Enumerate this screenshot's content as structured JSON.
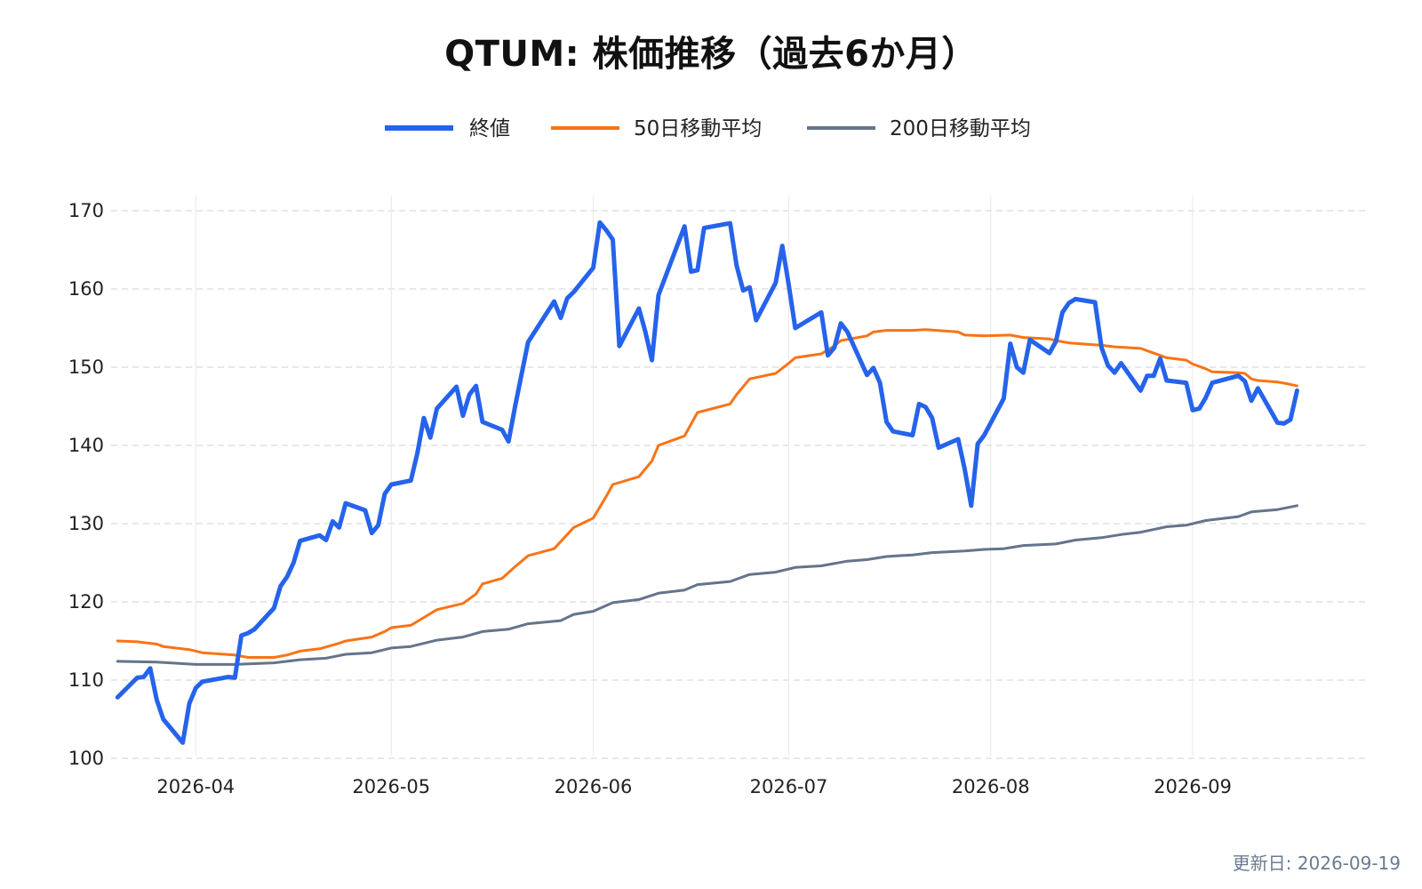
{
  "title": "QTUM: 株価推移（過去6か月）",
  "updated": "更新日: 2026-09-19",
  "colors": {
    "close": "#2563eb",
    "ma50": "#f97316",
    "ma200": "#64748b",
    "grid": "#d9d9d9"
  },
  "chart_data": {
    "type": "line",
    "title": "QTUM: 株価推移（過去6か月）",
    "xlabel": "",
    "ylabel": "",
    "ylim": [
      100,
      170
    ],
    "yticks": [
      100,
      110,
      120,
      130,
      140,
      150,
      160,
      170
    ],
    "yticklabels": [
      "100",
      "110",
      "120",
      "130",
      "140",
      "150",
      "160",
      "170"
    ],
    "xticks": [
      "2026-04-01",
      "2026-05-01",
      "2026-06-01",
      "2026-07-01",
      "2026-08-01",
      "2026-09-01"
    ],
    "xticklabels": [
      "2026-04",
      "2026-05",
      "2026-06",
      "2026-07",
      "2026-08",
      "2026-09"
    ],
    "xlim": [
      "2026-03-19",
      "2026-09-28"
    ],
    "grid": true,
    "legend": "top-center",
    "series": [
      {
        "name": "終値",
        "key": "close",
        "points": [
          [
            "2026-03-20",
            107.8
          ],
          [
            "2026-03-23",
            110.3
          ],
          [
            "2026-03-24",
            110.4
          ],
          [
            "2026-03-25",
            111.5
          ],
          [
            "2026-03-26",
            107.5
          ],
          [
            "2026-03-27",
            105.0
          ],
          [
            "2026-03-30",
            102.0
          ],
          [
            "2026-03-31",
            107.0
          ],
          [
            "2026-04-01",
            109.0
          ],
          [
            "2026-04-02",
            109.8
          ],
          [
            "2026-04-06",
            110.4
          ],
          [
            "2026-04-07",
            110.3
          ],
          [
            "2026-04-08",
            115.7
          ],
          [
            "2026-04-09",
            116.0
          ],
          [
            "2026-04-10",
            116.5
          ],
          [
            "2026-04-13",
            119.2
          ],
          [
            "2026-04-14",
            122.0
          ],
          [
            "2026-04-15",
            123.2
          ],
          [
            "2026-04-16",
            125.0
          ],
          [
            "2026-04-17",
            127.8
          ],
          [
            "2026-04-20",
            128.5
          ],
          [
            "2026-04-21",
            127.9
          ],
          [
            "2026-04-22",
            130.3
          ],
          [
            "2026-04-23",
            129.5
          ],
          [
            "2026-04-24",
            132.6
          ],
          [
            "2026-04-27",
            131.7
          ],
          [
            "2026-04-28",
            128.8
          ],
          [
            "2026-04-29",
            129.8
          ],
          [
            "2026-04-30",
            133.8
          ],
          [
            "2026-05-01",
            135.0
          ],
          [
            "2026-05-04",
            135.5
          ],
          [
            "2026-05-05",
            139.0
          ],
          [
            "2026-05-06",
            143.5
          ],
          [
            "2026-05-07",
            141.0
          ],
          [
            "2026-05-08",
            144.7
          ],
          [
            "2026-05-11",
            147.5
          ],
          [
            "2026-05-12",
            143.8
          ],
          [
            "2026-05-13",
            146.5
          ],
          [
            "2026-05-14",
            147.6
          ],
          [
            "2026-05-15",
            143.0
          ],
          [
            "2026-05-18",
            142.0
          ],
          [
            "2026-05-19",
            140.5
          ],
          [
            "2026-05-20",
            145.0
          ],
          [
            "2026-05-22",
            153.2
          ],
          [
            "2026-05-26",
            158.4
          ],
          [
            "2026-05-27",
            156.3
          ],
          [
            "2026-05-28",
            158.8
          ],
          [
            "2026-05-29",
            159.6
          ],
          [
            "2026-06-01",
            162.7
          ],
          [
            "2026-06-02",
            168.5
          ],
          [
            "2026-06-03",
            167.5
          ],
          [
            "2026-06-04",
            166.3
          ],
          [
            "2026-06-05",
            152.7
          ],
          [
            "2026-06-08",
            157.5
          ],
          [
            "2026-06-09",
            154.5
          ],
          [
            "2026-06-10",
            150.9
          ],
          [
            "2026-06-11",
            159.2
          ],
          [
            "2026-06-15",
            168.0
          ],
          [
            "2026-06-16",
            162.2
          ],
          [
            "2026-06-17",
            162.4
          ],
          [
            "2026-06-18",
            167.8
          ],
          [
            "2026-06-22",
            168.4
          ],
          [
            "2026-06-23",
            163.0
          ],
          [
            "2026-06-24",
            159.8
          ],
          [
            "2026-06-25",
            160.2
          ],
          [
            "2026-06-26",
            156.0
          ],
          [
            "2026-06-29",
            160.8
          ],
          [
            "2026-06-30",
            165.5
          ],
          [
            "2026-07-01",
            160.5
          ],
          [
            "2026-07-02",
            155.0
          ],
          [
            "2026-07-06",
            157.0
          ],
          [
            "2026-07-07",
            151.5
          ],
          [
            "2026-07-08",
            152.5
          ],
          [
            "2026-07-09",
            155.6
          ],
          [
            "2026-07-10",
            154.5
          ],
          [
            "2026-07-13",
            149.0
          ],
          [
            "2026-07-14",
            149.9
          ],
          [
            "2026-07-15",
            148.0
          ],
          [
            "2026-07-16",
            143.0
          ],
          [
            "2026-07-17",
            141.8
          ],
          [
            "2026-07-20",
            141.3
          ],
          [
            "2026-07-21",
            145.3
          ],
          [
            "2026-07-22",
            144.9
          ],
          [
            "2026-07-23",
            143.5
          ],
          [
            "2026-07-24",
            139.7
          ],
          [
            "2026-07-27",
            140.8
          ],
          [
            "2026-07-28",
            137.0
          ],
          [
            "2026-07-29",
            132.3
          ],
          [
            "2026-07-30",
            140.2
          ],
          [
            "2026-07-31",
            141.3
          ],
          [
            "2026-08-03",
            146.0
          ],
          [
            "2026-08-04",
            153.0
          ],
          [
            "2026-08-05",
            150.0
          ],
          [
            "2026-08-06",
            149.3
          ],
          [
            "2026-08-07",
            153.5
          ],
          [
            "2026-08-10",
            151.8
          ],
          [
            "2026-08-11",
            153.3
          ],
          [
            "2026-08-12",
            157.0
          ],
          [
            "2026-08-13",
            158.2
          ],
          [
            "2026-08-14",
            158.7
          ],
          [
            "2026-08-17",
            158.3
          ],
          [
            "2026-08-18",
            152.5
          ],
          [
            "2026-08-19",
            150.2
          ],
          [
            "2026-08-20",
            149.3
          ],
          [
            "2026-08-21",
            150.5
          ],
          [
            "2026-08-24",
            147.0
          ],
          [
            "2026-08-25",
            148.9
          ],
          [
            "2026-08-26",
            148.9
          ],
          [
            "2026-08-27",
            151.1
          ],
          [
            "2026-08-28",
            148.3
          ],
          [
            "2026-08-31",
            148.0
          ],
          [
            "2026-09-01",
            144.5
          ],
          [
            "2026-09-02",
            144.7
          ],
          [
            "2026-09-03",
            146.1
          ],
          [
            "2026-09-04",
            148.0
          ],
          [
            "2026-09-08",
            148.9
          ],
          [
            "2026-09-09",
            148.2
          ],
          [
            "2026-09-10",
            145.7
          ],
          [
            "2026-09-11",
            147.3
          ],
          [
            "2026-09-14",
            142.9
          ],
          [
            "2026-09-15",
            142.8
          ],
          [
            "2026-09-16",
            143.3
          ],
          [
            "2026-09-17",
            147.0
          ]
        ]
      },
      {
        "name": "50日移動平均",
        "key": "ma50",
        "points": [
          [
            "2026-03-20",
            115.0
          ],
          [
            "2026-03-23",
            114.9
          ],
          [
            "2026-03-26",
            114.6
          ],
          [
            "2026-03-27",
            114.3
          ],
          [
            "2026-03-31",
            113.9
          ],
          [
            "2026-04-02",
            113.5
          ],
          [
            "2026-04-07",
            113.2
          ],
          [
            "2026-04-09",
            112.9
          ],
          [
            "2026-04-13",
            112.9
          ],
          [
            "2026-04-15",
            113.2
          ],
          [
            "2026-04-17",
            113.7
          ],
          [
            "2026-04-20",
            114.0
          ],
          [
            "2026-04-23",
            114.7
          ],
          [
            "2026-04-24",
            115.0
          ],
          [
            "2026-04-28",
            115.5
          ],
          [
            "2026-04-30",
            116.2
          ],
          [
            "2026-05-01",
            116.7
          ],
          [
            "2026-05-04",
            117.0
          ],
          [
            "2026-05-06",
            118.0
          ],
          [
            "2026-05-08",
            119.0
          ],
          [
            "2026-05-12",
            119.8
          ],
          [
            "2026-05-14",
            121.0
          ],
          [
            "2026-05-15",
            122.3
          ],
          [
            "2026-05-18",
            123.0
          ],
          [
            "2026-05-20",
            124.5
          ],
          [
            "2026-05-22",
            125.9
          ],
          [
            "2026-05-26",
            126.8
          ],
          [
            "2026-05-29",
            129.5
          ],
          [
            "2026-06-01",
            130.7
          ],
          [
            "2026-06-03",
            133.5
          ],
          [
            "2026-06-04",
            135.0
          ],
          [
            "2026-06-08",
            136.0
          ],
          [
            "2026-06-10",
            138.0
          ],
          [
            "2026-06-11",
            140.0
          ],
          [
            "2026-06-15",
            141.2
          ],
          [
            "2026-06-17",
            144.2
          ],
          [
            "2026-06-22",
            145.3
          ],
          [
            "2026-06-23",
            146.5
          ],
          [
            "2026-06-25",
            148.5
          ],
          [
            "2026-06-29",
            149.2
          ],
          [
            "2026-07-01",
            150.5
          ],
          [
            "2026-07-02",
            151.2
          ],
          [
            "2026-07-06",
            151.7
          ],
          [
            "2026-07-08",
            152.7
          ],
          [
            "2026-07-09",
            153.4
          ],
          [
            "2026-07-13",
            154.0
          ],
          [
            "2026-07-14",
            154.5
          ],
          [
            "2026-07-16",
            154.7
          ],
          [
            "2026-07-20",
            154.7
          ],
          [
            "2026-07-22",
            154.8
          ],
          [
            "2026-07-27",
            154.5
          ],
          [
            "2026-07-28",
            154.1
          ],
          [
            "2026-07-31",
            154.0
          ],
          [
            "2026-08-04",
            154.1
          ],
          [
            "2026-08-06",
            153.8
          ],
          [
            "2026-08-10",
            153.6
          ],
          [
            "2026-08-11",
            153.4
          ],
          [
            "2026-08-13",
            153.1
          ],
          [
            "2026-08-18",
            152.8
          ],
          [
            "2026-08-20",
            152.6
          ],
          [
            "2026-08-24",
            152.4
          ],
          [
            "2026-08-26",
            151.8
          ],
          [
            "2026-08-28",
            151.2
          ],
          [
            "2026-08-31",
            150.9
          ],
          [
            "2026-09-01",
            150.4
          ],
          [
            "2026-09-03",
            149.8
          ],
          [
            "2026-09-04",
            149.4
          ],
          [
            "2026-09-08",
            149.3
          ],
          [
            "2026-09-09",
            149.2
          ],
          [
            "2026-09-10",
            148.5
          ],
          [
            "2026-09-11",
            148.3
          ],
          [
            "2026-09-14",
            148.1
          ],
          [
            "2026-09-16",
            147.8
          ],
          [
            "2026-09-17",
            147.6
          ]
        ]
      },
      {
        "name": "200日移動平均",
        "key": "ma200",
        "points": [
          [
            "2026-03-20",
            112.4
          ],
          [
            "2026-03-26",
            112.3
          ],
          [
            "2026-04-01",
            112.0
          ],
          [
            "2026-04-07",
            112.0
          ],
          [
            "2026-04-13",
            112.2
          ],
          [
            "2026-04-17",
            112.6
          ],
          [
            "2026-04-21",
            112.8
          ],
          [
            "2026-04-24",
            113.3
          ],
          [
            "2026-04-28",
            113.5
          ],
          [
            "2026-05-01",
            114.1
          ],
          [
            "2026-05-04",
            114.3
          ],
          [
            "2026-05-08",
            115.1
          ],
          [
            "2026-05-12",
            115.5
          ],
          [
            "2026-05-15",
            116.2
          ],
          [
            "2026-05-19",
            116.5
          ],
          [
            "2026-05-22",
            117.2
          ],
          [
            "2026-05-27",
            117.6
          ],
          [
            "2026-05-29",
            118.4
          ],
          [
            "2026-06-01",
            118.8
          ],
          [
            "2026-06-04",
            119.9
          ],
          [
            "2026-06-08",
            120.3
          ],
          [
            "2026-06-11",
            121.1
          ],
          [
            "2026-06-15",
            121.5
          ],
          [
            "2026-06-17",
            122.2
          ],
          [
            "2026-06-22",
            122.6
          ],
          [
            "2026-06-25",
            123.5
          ],
          [
            "2026-06-29",
            123.8
          ],
          [
            "2026-07-02",
            124.4
          ],
          [
            "2026-07-06",
            124.6
          ],
          [
            "2026-07-10",
            125.2
          ],
          [
            "2026-07-13",
            125.4
          ],
          [
            "2026-07-16",
            125.8
          ],
          [
            "2026-07-20",
            126.0
          ],
          [
            "2026-07-23",
            126.3
          ],
          [
            "2026-07-28",
            126.5
          ],
          [
            "2026-07-31",
            126.7
          ],
          [
            "2026-08-03",
            126.8
          ],
          [
            "2026-08-06",
            127.2
          ],
          [
            "2026-08-11",
            127.4
          ],
          [
            "2026-08-14",
            127.9
          ],
          [
            "2026-08-18",
            128.2
          ],
          [
            "2026-08-21",
            128.6
          ],
          [
            "2026-08-24",
            128.9
          ],
          [
            "2026-08-28",
            129.6
          ],
          [
            "2026-08-31",
            129.8
          ],
          [
            "2026-09-03",
            130.4
          ],
          [
            "2026-09-08",
            130.9
          ],
          [
            "2026-09-10",
            131.5
          ],
          [
            "2026-09-14",
            131.8
          ],
          [
            "2026-09-17",
            132.3
          ]
        ]
      }
    ]
  }
}
